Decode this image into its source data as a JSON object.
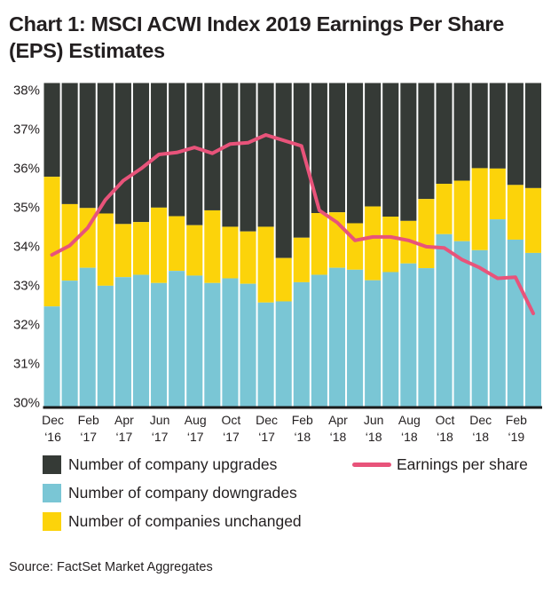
{
  "chart_data": {
    "type": "bar",
    "stacked": true,
    "title": "Chart 1: MSCI ACWI Index 2019 Earnings Per Share (EPS) Estimates",
    "source": "Source: FactSet Market Aggregates",
    "xlabel": "",
    "ylabel": "",
    "ylim": [
      30,
      38
    ],
    "yticks": [
      "30%",
      "31%",
      "32%",
      "33%",
      "34%",
      "35%",
      "36%",
      "37%",
      "38%"
    ],
    "ytick_values": [
      30,
      31,
      32,
      33,
      34,
      35,
      36,
      37,
      38
    ],
    "grid": false,
    "categories": [
      "Dec '16",
      "Jan '17",
      "Feb '17",
      "Mar '17",
      "Apr '17",
      "May '17",
      "Jun '17",
      "Jul '17",
      "Aug '17",
      "Sep '17",
      "Oct '17",
      "Nov '17",
      "Dec '17",
      "Jan '18",
      "Feb '18",
      "Mar '18",
      "Apr '18",
      "May '18",
      "Jun '18",
      "Jul '18",
      "Aug '18",
      "Sep '18",
      "Oct '18",
      "Nov '18",
      "Dec '18",
      "Jan '19",
      "Feb '19",
      "Mar '19"
    ],
    "xtick_labels": [
      {
        "index": 0,
        "month": "Dec",
        "year": "‘16"
      },
      {
        "index": 2,
        "month": "Feb",
        "year": "‘17"
      },
      {
        "index": 4,
        "month": "Apr",
        "year": "‘17"
      },
      {
        "index": 6,
        "month": "Jun",
        "year": "‘17"
      },
      {
        "index": 8,
        "month": "Aug",
        "year": "‘17"
      },
      {
        "index": 10,
        "month": "Oct",
        "year": "‘17"
      },
      {
        "index": 12,
        "month": "Dec",
        "year": "‘17"
      },
      {
        "index": 14,
        "month": "Feb",
        "year": "‘18"
      },
      {
        "index": 16,
        "month": "Apr",
        "year": "‘18"
      },
      {
        "index": 18,
        "month": "Jun",
        "year": "‘18"
      },
      {
        "index": 20,
        "month": "Aug",
        "year": "‘18"
      },
      {
        "index": 22,
        "month": "Oct",
        "year": "‘18"
      },
      {
        "index": 24,
        "month": "Dec",
        "year": "‘18"
      },
      {
        "index": 26,
        "month": "Feb",
        "year": "‘19"
      }
    ],
    "series": [
      {
        "name": "Number of company downgrades",
        "kind": "bar",
        "color": "#7ac6d5",
        "note": "bottom segment, from axis base to value (%)",
        "values": [
          32.45,
          33.11,
          33.44,
          32.98,
          33.2,
          33.26,
          33.05,
          33.36,
          33.24,
          33.05,
          33.17,
          33.03,
          32.55,
          32.58,
          33.07,
          33.26,
          33.44,
          33.39,
          33.12,
          33.33,
          33.55,
          33.43,
          34.3,
          34.12,
          33.89,
          34.68,
          34.16,
          33.82
        ]
      },
      {
        "name": "Number of companies unchanged",
        "kind": "bar",
        "color": "#fcd30a",
        "note": "middle segment, cumulative top boundary (%)",
        "values": [
          35.77,
          35.07,
          34.97,
          34.83,
          34.56,
          34.61,
          34.98,
          34.76,
          34.53,
          34.91,
          34.49,
          34.37,
          34.49,
          33.69,
          34.21,
          34.84,
          34.86,
          34.58,
          35.01,
          34.75,
          34.64,
          35.2,
          35.59,
          35.67,
          35.99,
          35.98,
          35.56,
          35.48
        ]
      },
      {
        "name": "Number of company upgrades",
        "kind": "bar",
        "color": "#353a36",
        "note": "top segment, fills to top of chart (%)",
        "values": [
          38,
          38,
          38,
          38,
          38,
          38,
          38,
          38,
          38,
          38,
          38,
          38,
          38,
          38,
          38,
          38,
          38,
          38,
          38,
          38,
          38,
          38,
          38,
          38,
          38,
          38,
          38,
          38
        ]
      },
      {
        "name": "Earnings per share",
        "kind": "line",
        "color": "#e8537a",
        "values": [
          33.77,
          34.01,
          34.46,
          35.18,
          35.67,
          35.98,
          36.34,
          36.39,
          36.52,
          36.37,
          36.61,
          36.64,
          36.84,
          36.7,
          36.56,
          34.91,
          34.6,
          34.14,
          34.23,
          34.23,
          34.14,
          33.98,
          33.95,
          33.65,
          33.44,
          33.17,
          33.2,
          32.27
        ]
      }
    ],
    "legend": {
      "placement": "bottom",
      "items": [
        {
          "label": "Number of company upgrades",
          "color": "#353a36",
          "kind": "swatch"
        },
        {
          "label": "Number of company downgrades",
          "color": "#7ac6d5",
          "kind": "swatch"
        },
        {
          "label": "Number of companies unchanged",
          "color": "#fcd30a",
          "kind": "swatch"
        },
        {
          "label": "Earnings per share",
          "color": "#e8537a",
          "kind": "line"
        }
      ]
    }
  }
}
